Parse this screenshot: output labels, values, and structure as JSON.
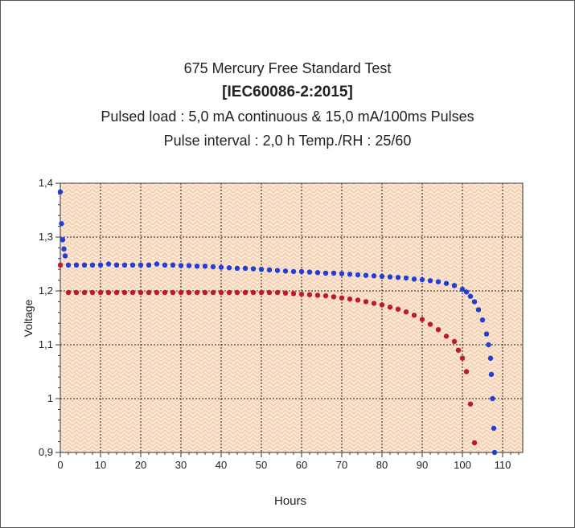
{
  "chart_data": {
    "type": "scatter",
    "title_lines": [
      "675  Mercury Free  Standard  Test",
      "[IEC60086-2:2015]",
      "Pulsed load : 5,0 mA  continuous  &  15,0 mA/100ms  Pulses",
      "Pulse interval : 2,0 h    Temp./RH  : 25/60"
    ],
    "xlabel": "Hours",
    "ylabel": "Voltage",
    "xlim": [
      0,
      115
    ],
    "ylim": [
      0.9,
      1.4
    ],
    "x_ticks": [
      "0",
      "10",
      "20",
      "30",
      "40",
      "50",
      "60",
      "70",
      "80",
      "90",
      "100",
      "110"
    ],
    "y_ticks": [
      "0,9",
      "1",
      "1,1",
      "1,2",
      "1,3",
      "1,4"
    ],
    "grid": true,
    "background": "hatched-orange",
    "colors": {
      "blue": "#1f3fd6",
      "red": "#c0182c",
      "plot_bg": "#fbe7d5",
      "hatch": "#f3c9a4"
    },
    "series": [
      {
        "color": "blue",
        "points": [
          [
            0,
            1.384
          ],
          [
            0.3,
            1.325
          ],
          [
            0.6,
            1.295
          ],
          [
            0.9,
            1.278
          ],
          [
            1.2,
            1.265
          ],
          [
            2,
            1.248
          ],
          [
            4,
            1.248
          ],
          [
            6,
            1.248
          ],
          [
            8,
            1.248
          ],
          [
            10,
            1.248
          ],
          [
            12,
            1.25
          ],
          [
            14,
            1.248
          ],
          [
            16,
            1.248
          ],
          [
            18,
            1.248
          ],
          [
            20,
            1.248
          ],
          [
            22,
            1.248
          ],
          [
            24,
            1.25
          ],
          [
            26,
            1.248
          ],
          [
            28,
            1.248
          ],
          [
            30,
            1.247
          ],
          [
            32,
            1.247
          ],
          [
            34,
            1.246
          ],
          [
            36,
            1.246
          ],
          [
            38,
            1.245
          ],
          [
            40,
            1.244
          ],
          [
            42,
            1.243
          ],
          [
            44,
            1.242
          ],
          [
            46,
            1.242
          ],
          [
            48,
            1.241
          ],
          [
            50,
            1.24
          ],
          [
            52,
            1.239
          ],
          [
            54,
            1.238
          ],
          [
            56,
            1.237
          ],
          [
            58,
            1.236
          ],
          [
            60,
            1.236
          ],
          [
            62,
            1.235
          ],
          [
            64,
            1.234
          ],
          [
            66,
            1.233
          ],
          [
            68,
            1.233
          ],
          [
            70,
            1.232
          ],
          [
            72,
            1.231
          ],
          [
            74,
            1.23
          ],
          [
            76,
            1.229
          ],
          [
            78,
            1.228
          ],
          [
            80,
            1.227
          ],
          [
            82,
            1.226
          ],
          [
            84,
            1.225
          ],
          [
            86,
            1.224
          ],
          [
            88,
            1.222
          ],
          [
            90,
            1.221
          ],
          [
            92,
            1.219
          ],
          [
            94,
            1.217
          ],
          [
            96,
            1.214
          ],
          [
            98,
            1.21
          ],
          [
            100,
            1.203
          ],
          [
            101,
            1.198
          ],
          [
            102,
            1.19
          ],
          [
            103,
            1.18
          ],
          [
            104,
            1.165
          ],
          [
            105,
            1.146
          ],
          [
            106,
            1.12
          ],
          [
            106.5,
            1.1
          ],
          [
            107,
            1.075
          ],
          [
            107.2,
            1.045
          ],
          [
            107.5,
            1.0
          ],
          [
            107.8,
            0.945
          ],
          [
            108,
            0.9
          ]
        ]
      },
      {
        "color": "red",
        "points": [
          [
            0,
            1.248
          ],
          [
            2,
            1.197
          ],
          [
            4,
            1.197
          ],
          [
            6,
            1.197
          ],
          [
            8,
            1.197
          ],
          [
            10,
            1.197
          ],
          [
            12,
            1.197
          ],
          [
            14,
            1.197
          ],
          [
            16,
            1.197
          ],
          [
            18,
            1.197
          ],
          [
            20,
            1.197
          ],
          [
            22,
            1.197
          ],
          [
            24,
            1.197
          ],
          [
            26,
            1.197
          ],
          [
            28,
            1.197
          ],
          [
            30,
            1.197
          ],
          [
            32,
            1.197
          ],
          [
            34,
            1.197
          ],
          [
            36,
            1.197
          ],
          [
            38,
            1.197
          ],
          [
            40,
            1.197
          ],
          [
            42,
            1.197
          ],
          [
            44,
            1.197
          ],
          [
            46,
            1.197
          ],
          [
            48,
            1.197
          ],
          [
            50,
            1.197
          ],
          [
            52,
            1.197
          ],
          [
            54,
            1.197
          ],
          [
            56,
            1.196
          ],
          [
            58,
            1.195
          ],
          [
            60,
            1.194
          ],
          [
            62,
            1.193
          ],
          [
            64,
            1.192
          ],
          [
            66,
            1.191
          ],
          [
            68,
            1.189
          ],
          [
            70,
            1.187
          ],
          [
            72,
            1.185
          ],
          [
            74,
            1.183
          ],
          [
            76,
            1.18
          ],
          [
            78,
            1.177
          ],
          [
            80,
            1.174
          ],
          [
            82,
            1.17
          ],
          [
            84,
            1.166
          ],
          [
            86,
            1.161
          ],
          [
            88,
            1.155
          ],
          [
            90,
            1.147
          ],
          [
            92,
            1.138
          ],
          [
            94,
            1.128
          ],
          [
            96,
            1.116
          ],
          [
            98,
            1.106
          ],
          [
            99,
            1.09
          ],
          [
            100,
            1.075
          ],
          [
            101,
            1.05
          ],
          [
            102,
            0.99
          ],
          [
            103,
            0.918
          ]
        ]
      }
    ]
  }
}
